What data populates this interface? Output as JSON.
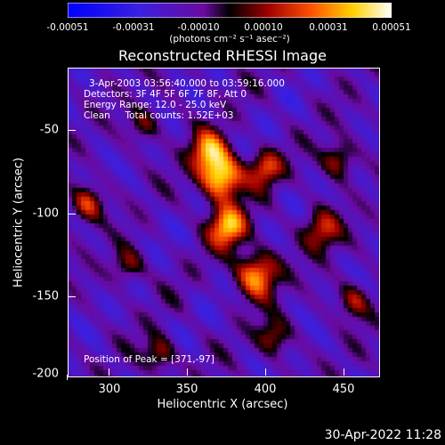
{
  "colorbar": {
    "tick_labels": [
      "-0.00051",
      "-0.00031",
      "-0.00010",
      "0.00010",
      "0.00031",
      "0.00051"
    ],
    "unit_text": "(photons cm⁻² s⁻¹ asec⁻²)",
    "range": [
      -0.00051,
      0.00051
    ]
  },
  "annotations": {
    "time_range": "3-Apr-2003 03:56:40.000 to 03:59:16.000",
    "detectors": "Detectors: 3F 4F 5F 6F 7F 8F, Att 0",
    "energy": "Energy Range: 12.0 - 25.0 keV",
    "clean": "Clean     Total counts: 1.52E+03",
    "peak": "Position of Peak = [371,-97]"
  },
  "timestamp": "30-Apr-2022 11:28",
  "chart_data": {
    "type": "heatmap",
    "title": "Reconstructed RHESSI Image",
    "xlabel": "Heliocentric X (arcsec)",
    "ylabel": "Heliocentric Y (arcsec)",
    "xlim": [
      273,
      466
    ],
    "ylim": [
      -203,
      -28
    ],
    "x_ticks": [
      300,
      350,
      400,
      450
    ],
    "y_ticks": [
      -50,
      -100,
      -150,
      -200
    ],
    "x_tick_labels": [
      "300",
      "350",
      "400",
      "450"
    ],
    "y_tick_labels": [
      "-50",
      "-100",
      "-150",
      "-200"
    ],
    "peak_position": [
      371,
      -97
    ],
    "colormap": "blue-purple-red-yellow-white",
    "colors": {
      "low": "#0000ff",
      "mid": "#6a0aa0",
      "high": "#ffffff"
    },
    "sources": [
      {
        "x": 368,
        "y": -90,
        "amplitude": 1.0,
        "sigma": 9
      },
      {
        "x": 372,
        "y": -118,
        "amplitude": 0.85,
        "sigma": 8
      },
      {
        "x": 390,
        "y": -145,
        "amplitude": 0.8,
        "sigma": 9
      },
      {
        "x": 360,
        "y": -75,
        "amplitude": 0.7,
        "sigma": 8
      },
      {
        "x": 395,
        "y": -85,
        "amplitude": 0.6,
        "sigma": 7
      },
      {
        "x": 430,
        "y": -120,
        "amplitude": 0.55,
        "sigma": 8
      },
      {
        "x": 440,
        "y": -80,
        "amplitude": 0.5,
        "sigma": 7
      },
      {
        "x": 285,
        "y": -105,
        "amplitude": 0.55,
        "sigma": 7
      },
      {
        "x": 310,
        "y": -140,
        "amplitude": 0.4,
        "sigma": 7
      },
      {
        "x": 330,
        "y": -190,
        "amplitude": 0.5,
        "sigma": 7
      },
      {
        "x": 400,
        "y": -180,
        "amplitude": 0.45,
        "sigma": 7
      },
      {
        "x": 450,
        "y": -160,
        "amplitude": 0.45,
        "sigma": 7
      },
      {
        "x": 320,
        "y": -60,
        "amplitude": 0.35,
        "sigma": 7
      }
    ]
  }
}
